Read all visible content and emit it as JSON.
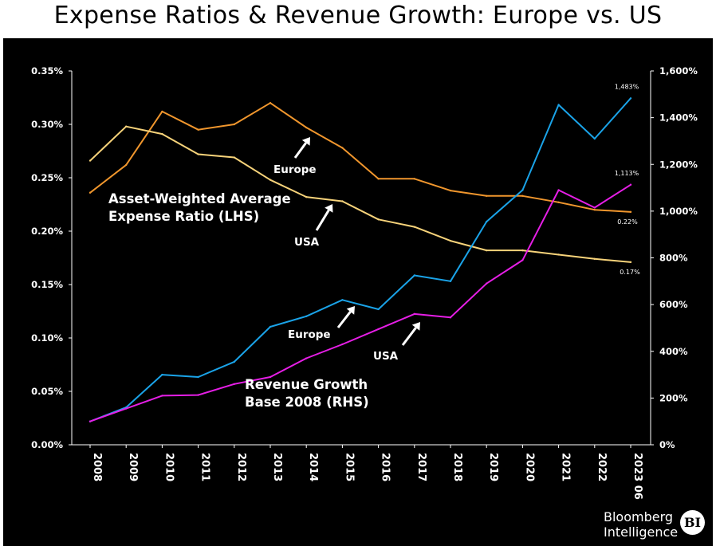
{
  "title": "Expense Ratios & Revenue Growth: Europe vs. US",
  "source": {
    "line1": "Bloomberg",
    "line2": "Intelligence",
    "logo_text": "BI"
  },
  "colors": {
    "background": "#000000",
    "expense_europe": "#f0962d",
    "expense_usa": "#f7d37a",
    "revenue_europe": "#1aa3e8",
    "revenue_usa": "#e61ee6"
  },
  "chart_data": {
    "type": "line",
    "x": [
      "2008",
      "2009",
      "2010",
      "2011",
      "2012",
      "2013",
      "2014",
      "2015",
      "2016",
      "2017",
      "2018",
      "2019",
      "2020",
      "2021",
      "2022",
      "2023 06"
    ],
    "left_axis": {
      "ylim": [
        0,
        0.35
      ],
      "ticks": [
        "0.00%",
        "0.05%",
        "0.10%",
        "0.15%",
        "0.20%",
        "0.25%",
        "0.30%",
        "0.35%"
      ],
      "label": "Asset-Weighted Average Expense Ratio (LHS)"
    },
    "right_axis": {
      "ylim": [
        0,
        1600
      ],
      "ticks": [
        "0%",
        "200%",
        "400%",
        "600%",
        "800%",
        "1,000%",
        "1,200%",
        "1,400%",
        "1,600%"
      ],
      "label": "Revenue Growth Base 2008 (RHS)"
    },
    "series": [
      {
        "name": "Europe",
        "axis": "left",
        "color": "#f0962d",
        "values": [
          0.236,
          0.262,
          0.312,
          0.295,
          0.3,
          0.32,
          0.297,
          0.278,
          0.249,
          0.249,
          0.238,
          0.233,
          0.233,
          0.227,
          0.22,
          0.218
        ]
      },
      {
        "name": "USA",
        "axis": "left",
        "color": "#f7d37a",
        "values": [
          0.266,
          0.298,
          0.291,
          0.272,
          0.269,
          0.248,
          0.232,
          0.228,
          0.211,
          0.204,
          0.191,
          0.182,
          0.182,
          0.178,
          0.174,
          0.171
        ]
      },
      {
        "name": "Europe",
        "axis": "right",
        "color": "#1aa3e8",
        "values": [
          100,
          160,
          300,
          290,
          355,
          505,
          550,
          620,
          580,
          725,
          700,
          955,
          1090,
          1455,
          1310,
          1483
        ]
      },
      {
        "name": "USA",
        "axis": "right",
        "color": "#e61ee6",
        "values": [
          100,
          155,
          210,
          213,
          260,
          290,
          370,
          430,
          495,
          560,
          545,
          690,
          790,
          1090,
          1015,
          1113
        ]
      }
    ],
    "end_labels": {
      "revenue_europe": "1,483%",
      "revenue_usa": "1,113%",
      "expense_europe": "0.22%",
      "expense_usa": "0.17%"
    },
    "annotations": {
      "expense_label_line1": "Asset-Weighted Average",
      "expense_label_line2": "Expense Ratio (LHS)",
      "revenue_label_line1": "Revenue Growth",
      "revenue_label_line2": "Base 2008 (RHS)",
      "expense_europe": "Europe",
      "expense_usa": "USA",
      "revenue_europe": "Europe",
      "revenue_usa": "USA"
    },
    "grid": false,
    "legend": "none"
  }
}
